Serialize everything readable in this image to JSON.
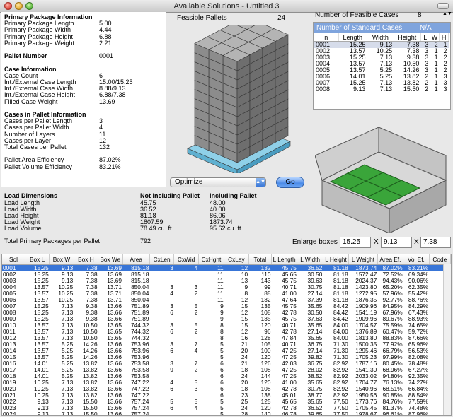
{
  "window": {
    "title": "Available Solutions - Untitled 3"
  },
  "left_info": [
    {
      "label": "Primary Package Information",
      "value": "",
      "bold": true,
      "y": 0
    },
    {
      "label": "Primary Package Length",
      "value": "5.00"
    },
    {
      "label": "Primary Package Width",
      "value": "4.44"
    },
    {
      "label": "Primary Package Height",
      "value": "6.88"
    },
    {
      "label": "Primary Package Weight",
      "value": "2.21"
    },
    {
      "label": "",
      "value": ""
    },
    {
      "label": "Pallet Number",
      "value": "0001",
      "bold": true
    },
    {
      "label": "",
      "value": ""
    },
    {
      "label": "Case Information",
      "value": "",
      "bold": true
    },
    {
      "label": "Case Count",
      "value": "6"
    },
    {
      "label": "Int./External Case Length",
      "value": "15.00/15.25"
    },
    {
      "label": "Int./External Case Width",
      "value": "8.88/9.13"
    },
    {
      "label": "Int./External Case Height",
      "value": "6.88/7.38"
    },
    {
      "label": "Filled Case Weight",
      "value": "13.69"
    },
    {
      "label": "",
      "value": ""
    },
    {
      "label": "Cases in Pallet Information",
      "value": "",
      "bold": true
    },
    {
      "label": "Cases per Pallet Length",
      "value": "3"
    },
    {
      "label": "Cases per Pallet Width",
      "value": "4"
    },
    {
      "label": "Number of Layers",
      "value": "11"
    },
    {
      "label": "Cases per Layer",
      "value": "12"
    },
    {
      "label": "Total Cases per Pallet",
      "value": "132"
    },
    {
      "label": "",
      "value": ""
    },
    {
      "label": "Pallet Area Efficiency",
      "value": "87.02%"
    },
    {
      "label": "Pallet Volume Efficiency",
      "value": "83.21%"
    }
  ],
  "feasible": {
    "label": "Feasible Pallets",
    "count": "24"
  },
  "optimize": {
    "selected": "Optimize",
    "go": "Go"
  },
  "load": {
    "title": "Load Dimensions",
    "col1": "Not Including Pallet",
    "col2": "Including Pallet",
    "rows": [
      {
        "label": "Load Length",
        "a": "45.75",
        "b": "48.00"
      },
      {
        "label": "Load Width",
        "a": "36.52",
        "b": "40.00"
      },
      {
        "label": "Load Height",
        "a": "81.18",
        "b": "86.06"
      },
      {
        "label": "Load Weight",
        "a": "1807.59",
        "b": "1873.74"
      },
      {
        "label": "Load Volume",
        "a": "78.49 cu. ft.",
        "b": "95.62 cu. ft."
      }
    ],
    "total_label": "Total Primary Packages per Pallet",
    "total_value": "792"
  },
  "cases": {
    "label": "Number of Feasible Cases",
    "count": "8",
    "std_label": "Number of Standard Cases",
    "std_value": "N/A",
    "headers": [
      "n",
      "Length",
      "Width",
      "Height",
      "L",
      "W",
      "H"
    ],
    "rows": [
      [
        "0001",
        "15.25",
        "9.13",
        "7.38",
        "3",
        "2",
        "1"
      ],
      [
        "0002",
        "13.57",
        "10.25",
        "7.38",
        "3",
        "1",
        "2"
      ],
      [
        "0003",
        "15.25",
        "7.13",
        "9.38",
        "3",
        "1",
        "2"
      ],
      [
        "0004",
        "13.57",
        "7.13",
        "10.50",
        "3",
        "1",
        "2"
      ],
      [
        "0005",
        "13.57",
        "5.25",
        "14.26",
        "3",
        "1",
        "2"
      ],
      [
        "0006",
        "14.01",
        "5.25",
        "13.82",
        "2",
        "1",
        "3"
      ],
      [
        "0007",
        "15.25",
        "7.13",
        "13.82",
        "2",
        "1",
        "3"
      ],
      [
        "0008",
        "9.13",
        "7.13",
        "15.50",
        "2",
        "1",
        "3"
      ]
    ]
  },
  "enlarge": {
    "label": "Enlarge boxes",
    "l": "15.25",
    "w": "9.13",
    "h": "7.38",
    "x": "X"
  },
  "results": {
    "headers": [
      "Sol",
      "Box L",
      "Box W",
      "Box H",
      "Box We",
      "Area",
      "CxLen",
      "CxWid",
      "CxHght",
      "CxLay",
      "Total",
      "L Length",
      "L Width",
      "L Height",
      "L Weight",
      "Area Ef.",
      "Vol Ef.",
      "Code"
    ],
    "rows": [
      [
        "0001",
        "15.25",
        "9.13",
        "7.38",
        "13.69",
        "815.18",
        "3",
        "4",
        "11",
        "12",
        "132",
        "45.75",
        "36.52",
        "81.18",
        "1873.74",
        "87.02%",
        "83.21%",
        "1"
      ],
      [
        "0002",
        "15.25",
        "9.13",
        "7.38",
        "13.69",
        "815.18",
        "",
        "",
        "11",
        "10",
        "110",
        "45.65",
        "30.50",
        "81.18",
        "1572.47",
        "72.52%",
        "69.34%",
        "2"
      ],
      [
        "0003",
        "15.25",
        "9.13",
        "7.38",
        "13.69",
        "815.18",
        "",
        "",
        "11",
        "13",
        "143",
        "45.75",
        "39.63",
        "81.18",
        "2024.37",
        "94.43%",
        "90.06%",
        "10"
      ],
      [
        "0004",
        "13.57",
        "10.25",
        "7.38",
        "13.71",
        "850.04",
        "3",
        "3",
        "11",
        "9",
        "99",
        "40.71",
        "30.75",
        "81.18",
        "1423.80",
        "65.20%",
        "62.35%",
        "1"
      ],
      [
        "0005",
        "13.57",
        "10.25",
        "7.38",
        "13.71",
        "850.04",
        "4",
        "2",
        "11",
        "8",
        "88",
        "41.00",
        "27.14",
        "81.18",
        "1272.95",
        "57.96%",
        "55.42%",
        "2"
      ],
      [
        "0006",
        "13.57",
        "10.25",
        "7.38",
        "13.71",
        "850.04",
        "",
        "",
        "11",
        "12",
        "132",
        "47.64",
        "37.39",
        "81.18",
        "1876.35",
        "92.77%",
        "88.76%",
        "10"
      ],
      [
        "0007",
        "15.25",
        "7.13",
        "9.38",
        "13.66",
        "751.89",
        "3",
        "5",
        "9",
        "15",
        "135",
        "45.75",
        "35.65",
        "84.42",
        "1909.96",
        "84.95%",
        "84.29%",
        "1"
      ],
      [
        "0008",
        "15.25",
        "7.13",
        "9.38",
        "13.66",
        "751.89",
        "6",
        "2",
        "9",
        "12",
        "108",
        "42.78",
        "30.50",
        "84.42",
        "1541.19",
        "67.96%",
        "67.43%",
        "2"
      ],
      [
        "0009",
        "15.25",
        "7.13",
        "9.38",
        "13.66",
        "751.89",
        "",
        "",
        "9",
        "15",
        "135",
        "45.75",
        "37.63",
        "84.42",
        "1909.96",
        "89.67%",
        "88.93%",
        "10"
      ],
      [
        "0010",
        "13.57",
        "7.13",
        "10.50",
        "13.65",
        "744.32",
        "3",
        "5",
        "8",
        "15",
        "120",
        "40.71",
        "35.65",
        "84.00",
        "1704.57",
        "75.59%",
        "74.65%",
        "1"
      ],
      [
        "0011",
        "13.57",
        "7.13",
        "10.50",
        "13.65",
        "744.32",
        "6",
        "2",
        "8",
        "12",
        "96",
        "42.78",
        "27.14",
        "84.00",
        "1376.89",
        "60.47%",
        "59.72%",
        "2"
      ],
      [
        "0012",
        "13.57",
        "7.13",
        "10.50",
        "13.65",
        "744.32",
        "",
        "",
        "8",
        "16",
        "128",
        "47.84",
        "35.65",
        "84.00",
        "1813.80",
        "88.83%",
        "87.66%",
        "10"
      ],
      [
        "0013",
        "13.57",
        "5.25",
        "14.26",
        "13.66",
        "753.96",
        "3",
        "7",
        "5",
        "21",
        "105",
        "40.71",
        "36.75",
        "71.30",
        "1500.35",
        "77.92%",
        "65.96%",
        "1"
      ],
      [
        "0014",
        "13.57",
        "5.25",
        "14.26",
        "13.66",
        "753.96",
        "6",
        "4",
        "5",
        "20",
        "100",
        "47.25",
        "27.14",
        "71.30",
        "1295.46",
        "66.79%",
        "56.53%",
        "2"
      ],
      [
        "0015",
        "13.57",
        "5.25",
        "14.26",
        "13.66",
        "753.96",
        "",
        "",
        "5",
        "24",
        "120",
        "47.25",
        "39.82",
        "71.30",
        "1705.23",
        "97.99%",
        "82.08%",
        "10"
      ],
      [
        "0016",
        "14.01",
        "5.25",
        "13.82",
        "13.66",
        "753.58",
        "3",
        "7",
        "6",
        "21",
        "126",
        "42.03",
        "36.75",
        "82.92",
        "1787.16",
        "80.45%",
        "78.48%",
        "1"
      ],
      [
        "0017",
        "14.01",
        "5.25",
        "13.82",
        "13.66",
        "753.58",
        "9",
        "2",
        "6",
        "18",
        "108",
        "47.25",
        "28.02",
        "82.92",
        "1541.30",
        "68.96%",
        "67.27%",
        "2"
      ],
      [
        "0018",
        "14.01",
        "5.25",
        "13.82",
        "13.66",
        "753.58",
        "",
        "",
        "6",
        "24",
        "144",
        "47.25",
        "38.52",
        "82.92",
        "2033.02",
        "94.80%",
        "92.35%",
        "10"
      ],
      [
        "0019",
        "10.25",
        "7.13",
        "13.82",
        "13.66",
        "747.22",
        "4",
        "5",
        "6",
        "20",
        "120",
        "41.00",
        "35.65",
        "82.92",
        "1704.77",
        "76.13%",
        "74.27%",
        "1"
      ],
      [
        "0020",
        "10.25",
        "7.13",
        "13.82",
        "13.66",
        "747.22",
        "6",
        "3",
        "6",
        "18",
        "108",
        "42.78",
        "30.75",
        "82.92",
        "1540.96",
        "68.51%",
        "66.84%",
        "2"
      ],
      [
        "0021",
        "10.25",
        "7.13",
        "13.82",
        "13.66",
        "747.22",
        "",
        "",
        "6",
        "23",
        "138",
        "45.01",
        "38.77",
        "82.92",
        "1950.56",
        "90.85%",
        "88.54%",
        "10"
      ],
      [
        "0022",
        "9.13",
        "7.13",
        "15.50",
        "13.66",
        "757.24",
        "5",
        "5",
        "5",
        "25",
        "125",
        "45.65",
        "35.65",
        "77.50",
        "1773.76",
        "84.76%",
        "77.59%",
        "1"
      ],
      [
        "0023",
        "9.13",
        "7.13",
        "15.50",
        "13.66",
        "757.24",
        "6",
        "4",
        "5",
        "24",
        "120",
        "42.78",
        "36.52",
        "77.50",
        "1705.45",
        "81.37%",
        "74.48%",
        "2"
      ],
      [
        "0024",
        "9.13",
        "7.13",
        "15.50",
        "13.66",
        "757.24",
        "",
        "",
        "5",
        "28",
        "140",
        "46.78",
        "39.65",
        "77.50",
        "1978.67",
        "96.61%",
        "87.96%",
        "10"
      ]
    ]
  }
}
